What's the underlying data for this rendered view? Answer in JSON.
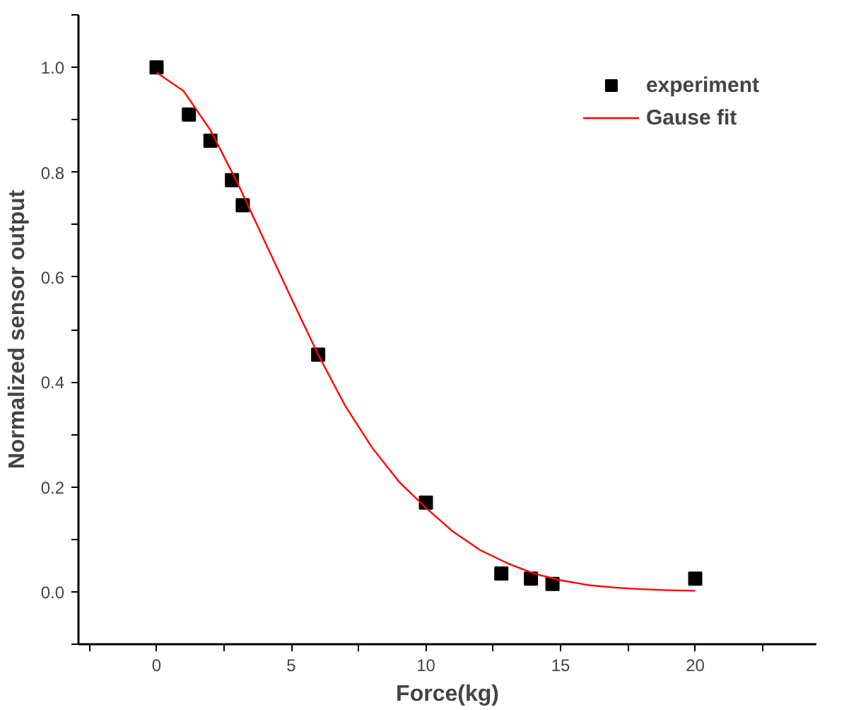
{
  "chart_data": {
    "type": "scatter",
    "xlabel": "Force(kg)",
    "ylabel": "Normalized sensor output",
    "xlim": [
      -2.9,
      24.5
    ],
    "ylim": [
      -0.1,
      1.1
    ],
    "xticks": [
      {
        "value": -2.5,
        "label": null
      },
      0,
      {
        "value": 2.5,
        "label": null
      },
      5,
      {
        "value": 7.5,
        "label": null
      },
      10,
      {
        "value": 12.5,
        "label": null
      },
      15,
      {
        "value": 17.5,
        "label": null
      },
      20,
      {
        "value": 22.5,
        "label": null
      }
    ],
    "yticks": [
      {
        "value": -0.1,
        "label": null
      },
      "0.0",
      {
        "value": 0.1,
        "label": null
      },
      0.2,
      {
        "value": 0.3,
        "label": null
      },
      0.4,
      {
        "value": 0.5,
        "label": null
      },
      0.6,
      {
        "value": 0.7,
        "label": null
      },
      0.8,
      {
        "value": 0.9,
        "label": null
      },
      "1.0",
      {
        "value": 1.1,
        "label": null
      }
    ],
    "grid": false,
    "legend": "top right",
    "series": [
      {
        "name": "experiment",
        "marker": "square",
        "color": "#000000",
        "x": [
          0,
          1.2,
          2.0,
          2.8,
          3.2,
          6,
          10,
          12.8,
          13.9,
          14.7,
          20
        ],
        "values": [
          1.0,
          0.91,
          0.86,
          0.785,
          0.737,
          0.452,
          0.17,
          0.035,
          0.025,
          0.015,
          0.025
        ]
      },
      {
        "name": "Gause fit",
        "type": "line",
        "marker": "none",
        "line_style": "solid",
        "color": "#ff0000",
        "x": [
          0,
          1,
          2,
          3,
          4,
          5,
          6,
          7,
          8,
          9,
          10,
          11,
          12,
          13,
          14,
          15,
          16,
          17,
          18,
          19,
          20
        ],
        "values": [
          0.99,
          0.955,
          0.88,
          0.78,
          0.67,
          0.56,
          0.452,
          0.355,
          0.275,
          0.21,
          0.16,
          0.115,
          0.08,
          0.055,
          0.035,
          0.022,
          0.013,
          0.008,
          0.005,
          0.003,
          0.002
        ]
      }
    ]
  }
}
